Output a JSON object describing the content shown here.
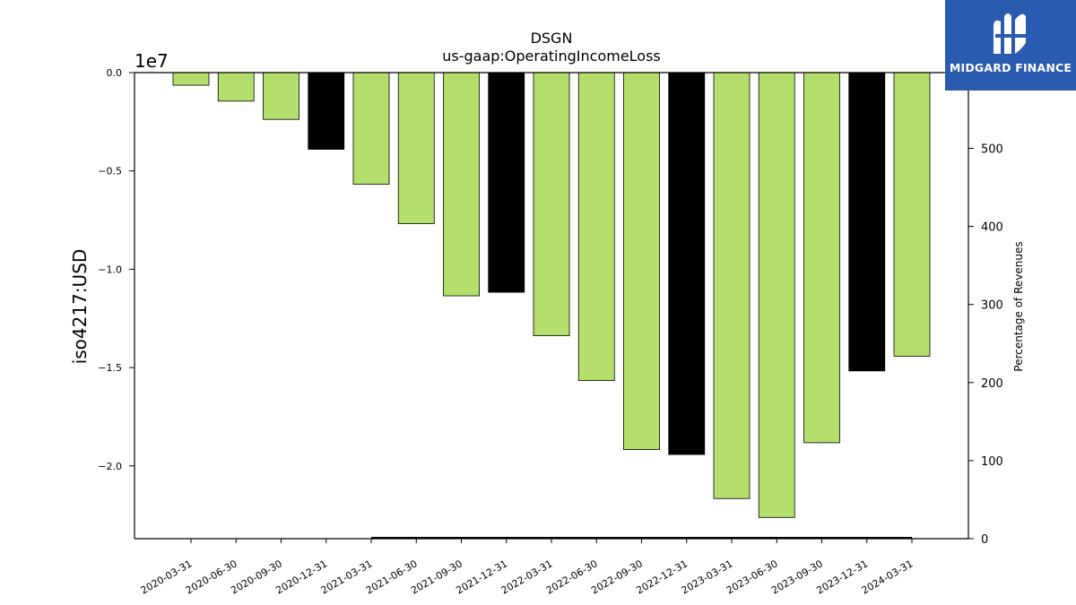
{
  "chart_data": {
    "type": "bar",
    "title": "DSGN",
    "subtitle": "us-gaap:OperatingIncomeLoss",
    "ylabel": "iso4217:USD",
    "y2label": "Percentage of Revenues",
    "offset_label": "1e7",
    "categories": [
      "2020-03-31",
      "2020-06-30",
      "2020-09-30",
      "2020-12-31",
      "2021-03-31",
      "2021-06-30",
      "2021-09-30",
      "2021-12-31",
      "2022-03-31",
      "2022-06-30",
      "2022-09-30",
      "2022-12-31",
      "2023-03-31",
      "2023-06-30",
      "2023-09-30",
      "2023-12-31",
      "2024-03-31"
    ],
    "values": [
      -640000,
      -1450000,
      -2380000,
      -3900000,
      -5680000,
      -7680000,
      -11350000,
      -11170000,
      -13380000,
      -15660000,
      -19170000,
      -19420000,
      -21660000,
      -22620000,
      -18820000,
      -15170000,
      -14420000
    ],
    "bar_colors": [
      "#b5df6c",
      "#b5df6c",
      "#b5df6c",
      "#000000",
      "#b5df6c",
      "#b5df6c",
      "#b5df6c",
      "#000000",
      "#b5df6c",
      "#b5df6c",
      "#b5df6c",
      "#000000",
      "#b5df6c",
      "#b5df6c",
      "#b5df6c",
      "#000000",
      "#b5df6c"
    ],
    "ylim": [
      -23700000,
      0
    ],
    "yticks": [
      0,
      -5000000,
      -10000000,
      -15000000,
      -20000000
    ],
    "ytick_labels": [
      "0.0",
      "−0.5",
      "−1.0",
      "−1.5",
      "−2.0"
    ],
    "y2lim": [
      0,
      597
    ],
    "y2ticks": [
      0,
      100,
      200,
      300,
      400,
      500
    ],
    "y2tick_labels": [
      "0",
      "100",
      "200",
      "300",
      "400",
      "500"
    ],
    "secondary_series": {
      "name": "",
      "color": "#000000",
      "values": [
        null,
        null,
        null,
        null,
        0,
        0,
        0,
        0,
        0,
        0,
        0,
        0,
        0,
        0,
        0,
        0,
        0
      ]
    },
    "grid": false
  },
  "logo": {
    "text": "MIDGARD FINANCE",
    "background": "#2a5bb0"
  }
}
